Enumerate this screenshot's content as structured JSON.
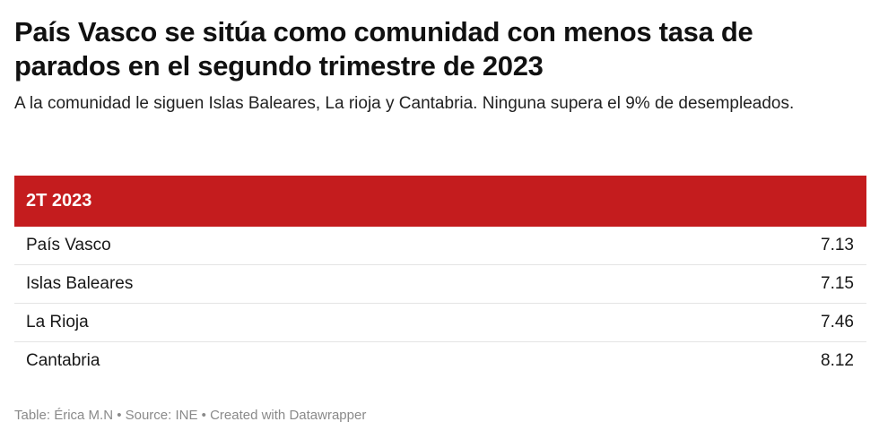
{
  "title": "País Vasco se sitúa como comunidad con menos tasa de parados en el segundo trimestre de 2023",
  "subtitle": "A la comunidad le siguen Islas Baleares, La rioja y Cantabria. Ninguna supera el 9% de desempleados.",
  "table": {
    "header": "2T 2023",
    "header_color": "#c41c1e",
    "rows": [
      {
        "name": "País Vasco",
        "value": "7.13"
      },
      {
        "name": "Islas Baleares",
        "value": "7.15"
      },
      {
        "name": "La Rioja",
        "value": "7.46"
      },
      {
        "name": "Cantabria",
        "value": "8.12"
      }
    ]
  },
  "footer": "Table: Érica M.N • Source: INE • Created with Datawrapper"
}
